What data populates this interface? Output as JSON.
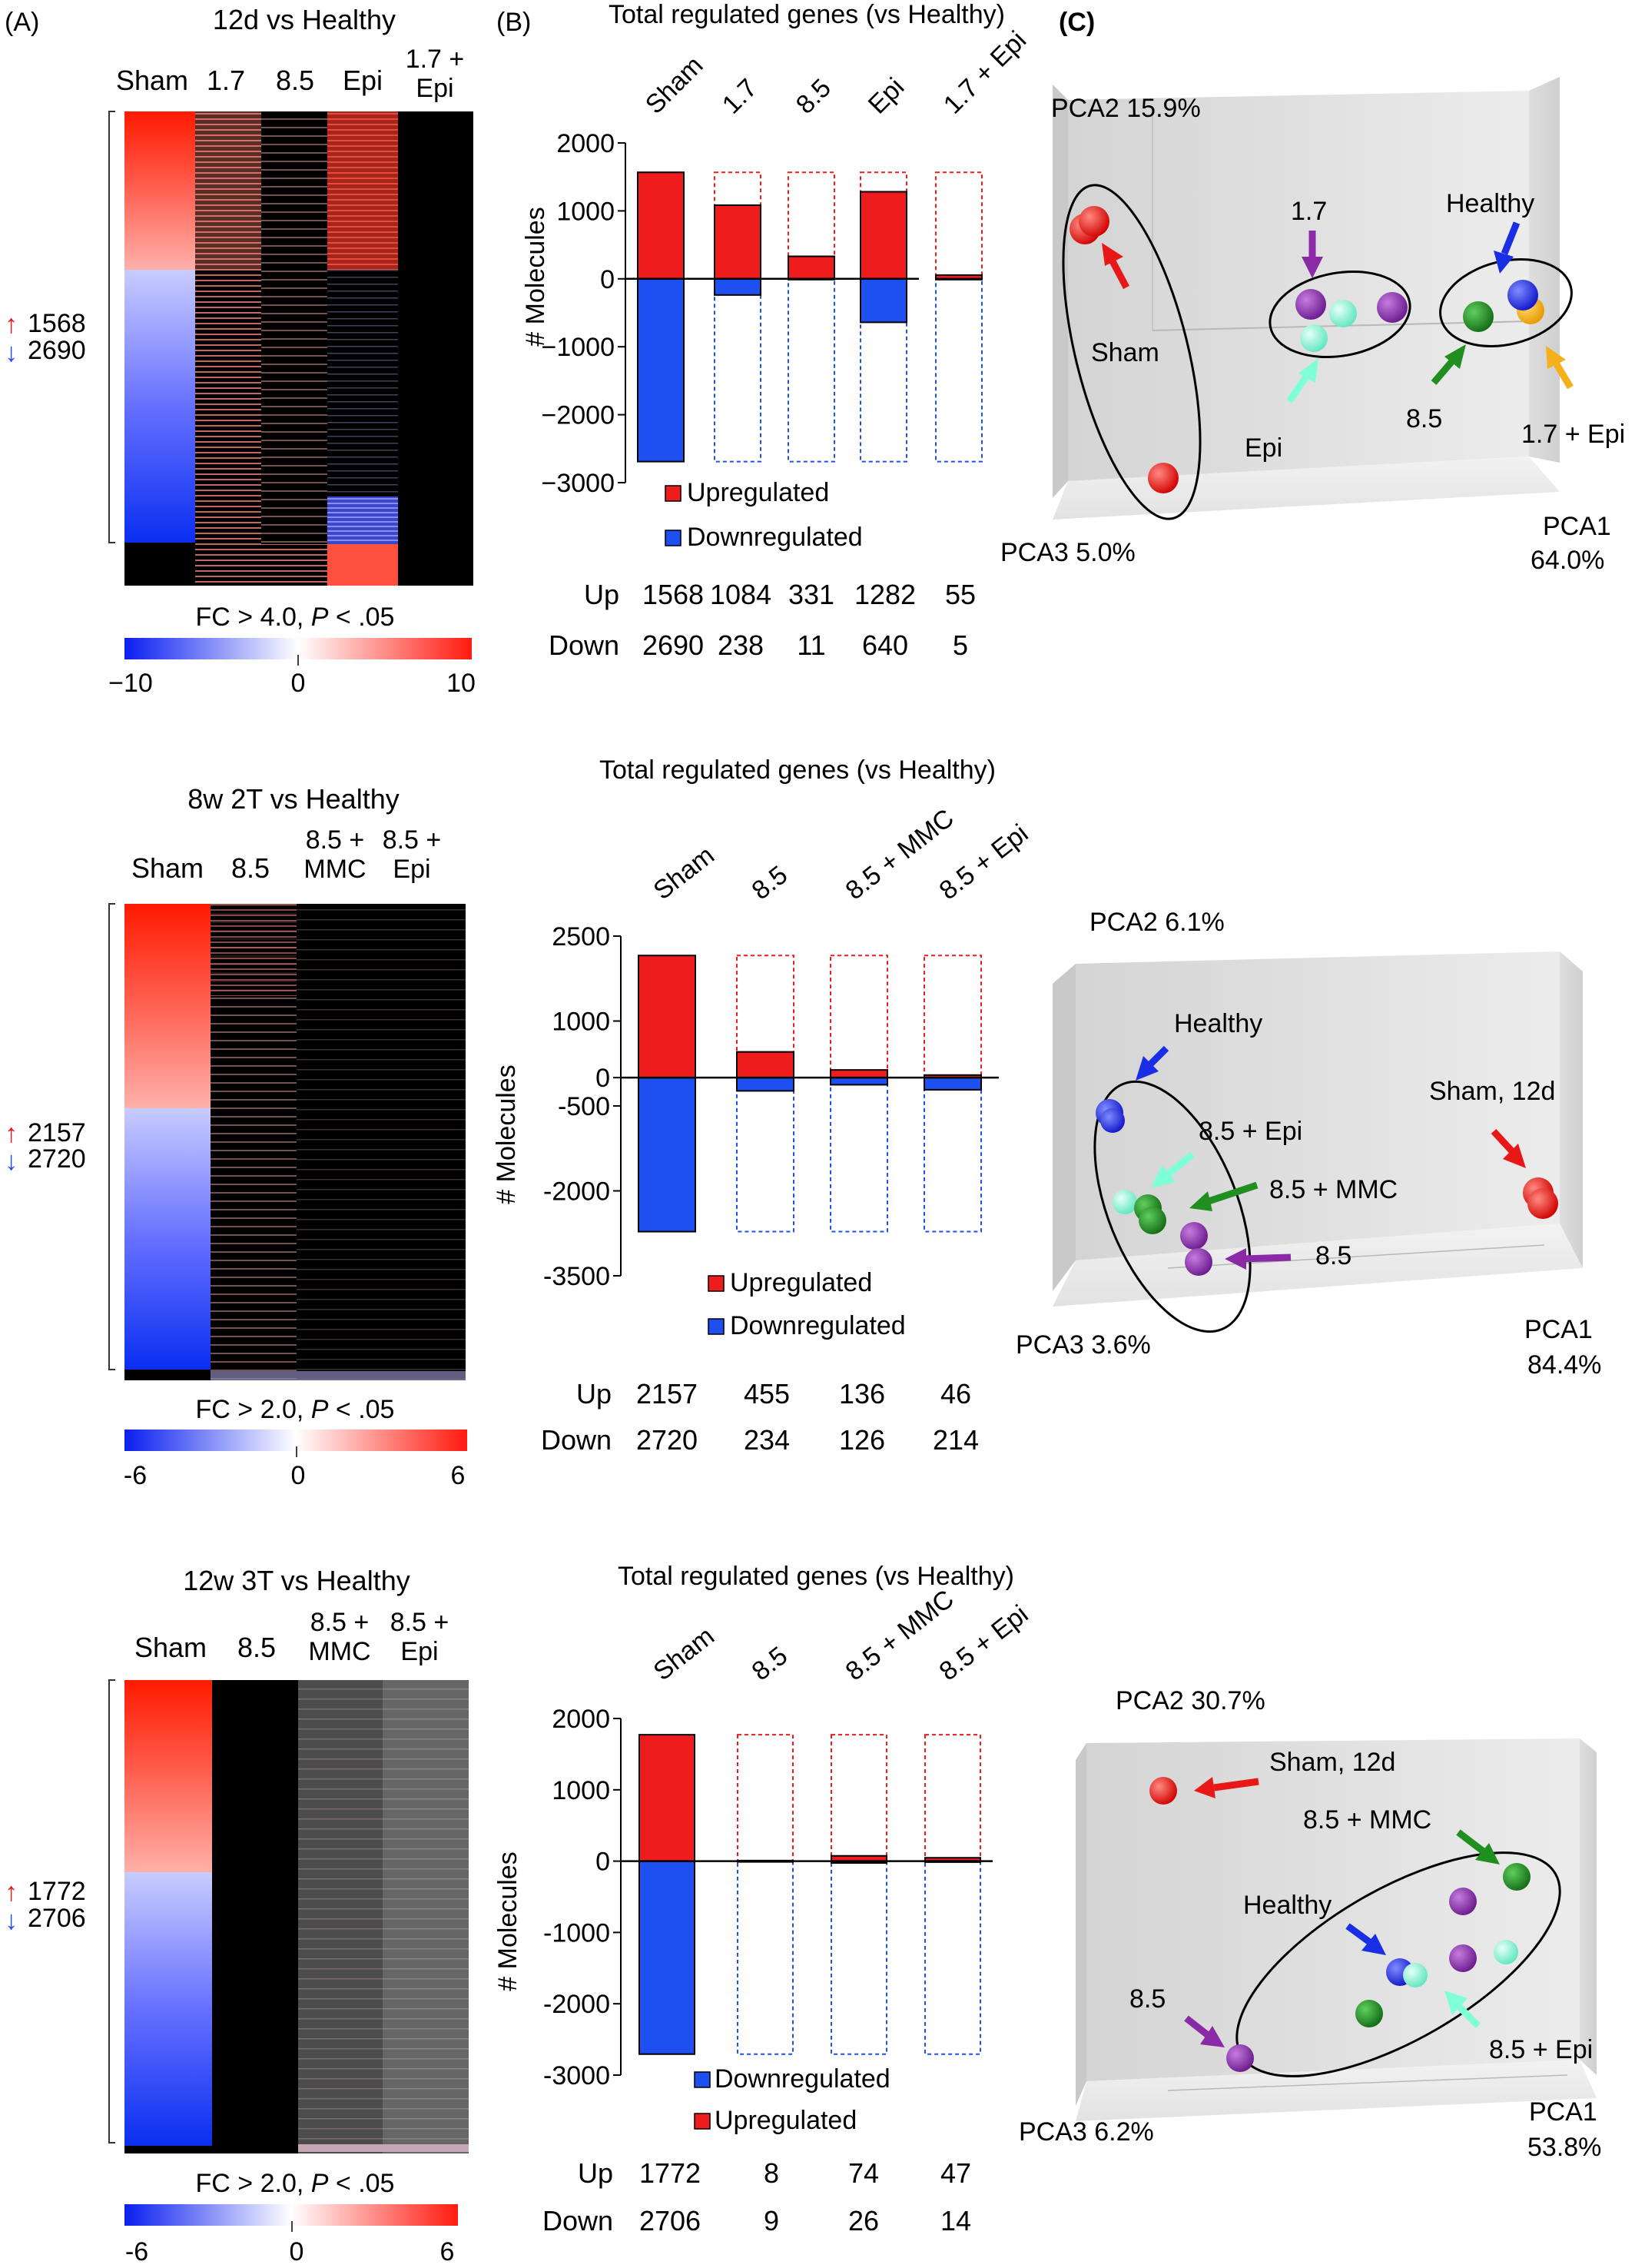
{
  "panels": {
    "a": "(A)",
    "b": "(B)",
    "c": "(C)"
  },
  "rows": [
    {
      "heatmap": {
        "title": "12d vs Healthy",
        "columns": [
          {
            "lines": [
              "Sham"
            ]
          },
          {
            "lines": [
              "1.7"
            ]
          },
          {
            "lines": [
              "8.5"
            ]
          },
          {
            "lines": [
              "Epi"
            ]
          },
          {
            "lines": [
              "1.7 +",
              "Epi"
            ]
          }
        ],
        "up_count": "1568",
        "down_count": "2690",
        "threshold": [
          "FC > 4.0, ",
          "P",
          " < .05"
        ],
        "scale_min": "−10",
        "scale_mid": "0",
        "scale_max": "10"
      },
      "bar": {
        "title": "Total regulated genes (vs Healthy)",
        "ylabel": "# Molecules",
        "ticks": [
          "2000",
          "1000",
          "0",
          "−1000",
          "−2000",
          "−3000"
        ],
        "legend_upregulated": "Upregulated",
        "legend_downregulated": "Downregulated",
        "up_label": "Up",
        "down_label": "Down"
      },
      "pca": {
        "pca1": [
          "PCA1",
          "64.0%"
        ],
        "pca2": "PCA2 15.9%",
        "pca3": "PCA3 5.0%",
        "labels": [
          "Sham",
          "1.7",
          "Healthy",
          "Epi",
          "8.5",
          "1.7 + Epi"
        ]
      }
    },
    {
      "heatmap": {
        "title": "8w 2T  vs  Healthy",
        "columns": [
          {
            "lines": [
              "Sham"
            ]
          },
          {
            "lines": [
              "8.5"
            ]
          },
          {
            "lines": [
              "8.5 +",
              "MMC"
            ]
          },
          {
            "lines": [
              "8.5 +",
              "Epi"
            ]
          }
        ],
        "up_count": "2157",
        "down_count": "2720",
        "threshold": [
          "FC > 2.0, ",
          "P",
          " < .05"
        ],
        "scale_min": "-6",
        "scale_mid": "0",
        "scale_max": "6"
      },
      "bar": {
        "title": "Total regulated genes (vs Healthy)",
        "ylabel": "# Molecules",
        "ticks": [
          "2500",
          "1000",
          "0",
          "-500",
          "-2000",
          "-3500"
        ],
        "legend_upregulated": "Upregulated",
        "legend_downregulated": "Downregulated",
        "up_label": "Up",
        "down_label": "Down"
      },
      "pca": {
        "pca1": [
          "PCA1",
          "84.4%"
        ],
        "pca2": "PCA2 6.1%",
        "pca3": "PCA3 3.6%",
        "labels": [
          "Healthy",
          "Sham, 12d",
          "8.5 + Epi",
          "8.5 + MMC",
          "8.5"
        ]
      }
    },
    {
      "heatmap": {
        "title": "12w 3T  vs  Healthy",
        "columns": [
          {
            "lines": [
              "Sham"
            ]
          },
          {
            "lines": [
              "8.5"
            ]
          },
          {
            "lines": [
              "8.5 +",
              "MMC"
            ]
          },
          {
            "lines": [
              "8.5 +",
              "Epi"
            ]
          }
        ],
        "up_count": "1772",
        "down_count": "2706",
        "threshold": [
          "FC > 2.0, ",
          "P",
          " < .05"
        ],
        "scale_min": "-6",
        "scale_mid": "0",
        "scale_max": "6"
      },
      "bar": {
        "title": "Total regulated genes (vs Healthy)",
        "ylabel": "# Molecules",
        "ticks": [
          "2000",
          "1000",
          "0",
          "-1000",
          "-2000",
          "-3000"
        ],
        "legend_upregulated": "Upregulated",
        "legend_downregulated": "Downregulated",
        "up_label": "Up",
        "down_label": "Down"
      },
      "pca": {
        "pca1": [
          "PCA1",
          "53.8%"
        ],
        "pca2": "PCA2 30.7%",
        "pca3": "PCA3 6.2%",
        "labels": [
          "Sham, 12d",
          "8.5 + MMC",
          "Healthy",
          "8.5",
          "8.5 + Epi"
        ]
      }
    }
  ],
  "colors": {
    "up": "#ee1c1c",
    "down": "#1e4ff0",
    "heat_black": "#000000",
    "sham": "#e81818",
    "healthy": "#1a2ee6",
    "g17": "#8a2aa6",
    "g85": "#8a2aa6",
    "epi": "#8fffe0",
    "mmc": "#1f8f1f",
    "g17epi": "#f6b01c"
  },
  "chart_data": [
    {
      "type": "bar",
      "title": "Total regulated genes (vs Healthy)",
      "ylabel": "# Molecules",
      "ylim": [
        -3000,
        2000
      ],
      "categories": [
        "Sham",
        "1.7",
        "8.5",
        "Epi",
        "1.7 + Epi"
      ],
      "series": [
        {
          "name": "Upregulated",
          "values": [
            1568,
            1084,
            331,
            1282,
            55
          ]
        },
        {
          "name": "Downregulated",
          "values": [
            -2690,
            -238,
            -11,
            -640,
            -5
          ]
        }
      ],
      "table": {
        "Up": [
          1568,
          1084,
          331,
          1282,
          55
        ],
        "Down": [
          2690,
          238,
          11,
          640,
          5
        ]
      }
    },
    {
      "type": "bar",
      "title": "Total regulated genes (vs Healthy)",
      "ylabel": "# Molecules",
      "ylim": [
        -3500,
        2500
      ],
      "categories": [
        "Sham",
        "8.5",
        "8.5 + MMC",
        "8.5 + Epi"
      ],
      "series": [
        {
          "name": "Upregulated",
          "values": [
            2157,
            455,
            136,
            46
          ]
        },
        {
          "name": "Downregulated",
          "values": [
            -2720,
            -234,
            -126,
            -214
          ]
        }
      ],
      "table": {
        "Up": [
          2157,
          455,
          136,
          46
        ],
        "Down": [
          2720,
          234,
          126,
          214
        ]
      }
    },
    {
      "type": "bar",
      "title": "Total regulated genes (vs Healthy)",
      "ylabel": "# Molecules",
      "ylim": [
        -3000,
        2000
      ],
      "categories": [
        "Sham",
        "8.5",
        "8.5 + MMC",
        "8.5 + Epi"
      ],
      "series": [
        {
          "name": "Downregulated",
          "values": [
            -2706,
            -9,
            -26,
            -14
          ]
        },
        {
          "name": "Upregulated",
          "values": [
            1772,
            8,
            74,
            47
          ]
        }
      ],
      "table": {
        "Up": [
          1772,
          8,
          74,
          47
        ],
        "Down": [
          2706,
          9,
          26,
          14
        ]
      }
    }
  ]
}
